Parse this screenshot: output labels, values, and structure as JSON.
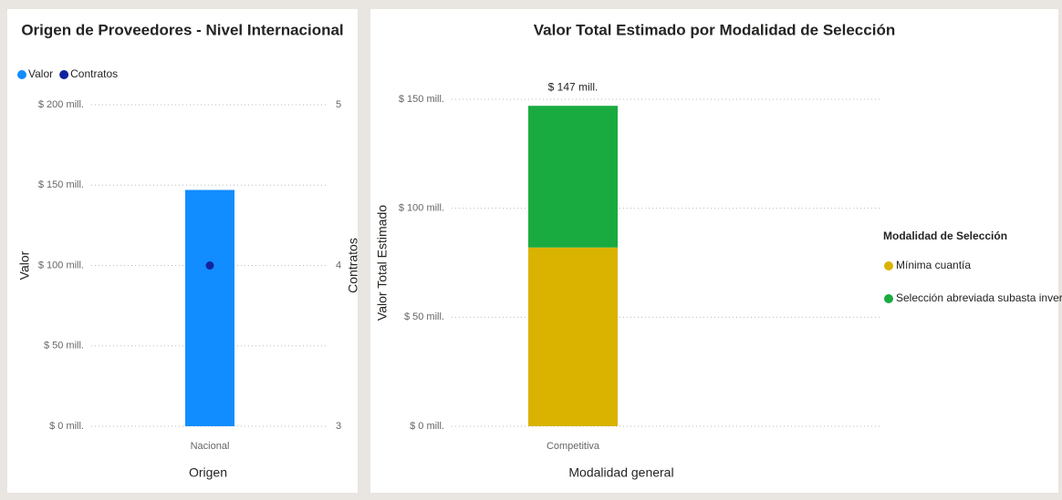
{
  "chart_data": [
    {
      "type": "combo",
      "title": "Origen de Proveedores - Nivel Internacional",
      "categories": [
        "Nacional"
      ],
      "series": [
        {
          "name": "Valor",
          "color": "#118dff",
          "values": [
            147
          ]
        },
        {
          "name": "Contratos",
          "color": "#12239e",
          "values": [
            4
          ],
          "axis": "y2"
        }
      ],
      "x_label": "Origen",
      "y_label": "Valor",
      "y2_label": "Contratos",
      "ylim": [
        0,
        200
      ],
      "yticks": [
        {
          "value": 0,
          "label": "$ 0 mill."
        },
        {
          "value": 50,
          "label": "$ 50 mill."
        },
        {
          "value": 100,
          "label": "$ 100 mill."
        },
        {
          "value": 150,
          "label": "$ 150 mill."
        },
        {
          "value": 200,
          "label": "$ 200 mill."
        }
      ],
      "y2lim": [
        3,
        5
      ],
      "y2ticks": [
        3,
        4,
        5
      ],
      "grid": true,
      "legend": "top-left"
    },
    {
      "type": "stacked_bar",
      "title": "Valor Total Estimado por Modalidad de Selección",
      "categories": [
        "Competitiva"
      ],
      "series": [
        {
          "name": "Mínima cuantía",
          "color": "#d9b300",
          "values": [
            82
          ]
        },
        {
          "name": "Selección abreviada subasta inversa",
          "color": "#1aab40",
          "values": [
            65
          ]
        }
      ],
      "totals": [
        147
      ],
      "total_labels": [
        "$ 147 mill."
      ],
      "x_label": "Modalidad general",
      "y_label": "Valor Total Estimado",
      "legend_title": "Modalidad de Selección",
      "ylim": [
        0,
        150
      ],
      "yticks": [
        {
          "value": 0,
          "label": "$ 0 mill."
        },
        {
          "value": 50,
          "label": "$ 50 mill."
        },
        {
          "value": 100,
          "label": "$ 100 mill."
        },
        {
          "value": 150,
          "label": "$ 150 mill."
        }
      ],
      "grid": true,
      "legend": "right"
    }
  ]
}
